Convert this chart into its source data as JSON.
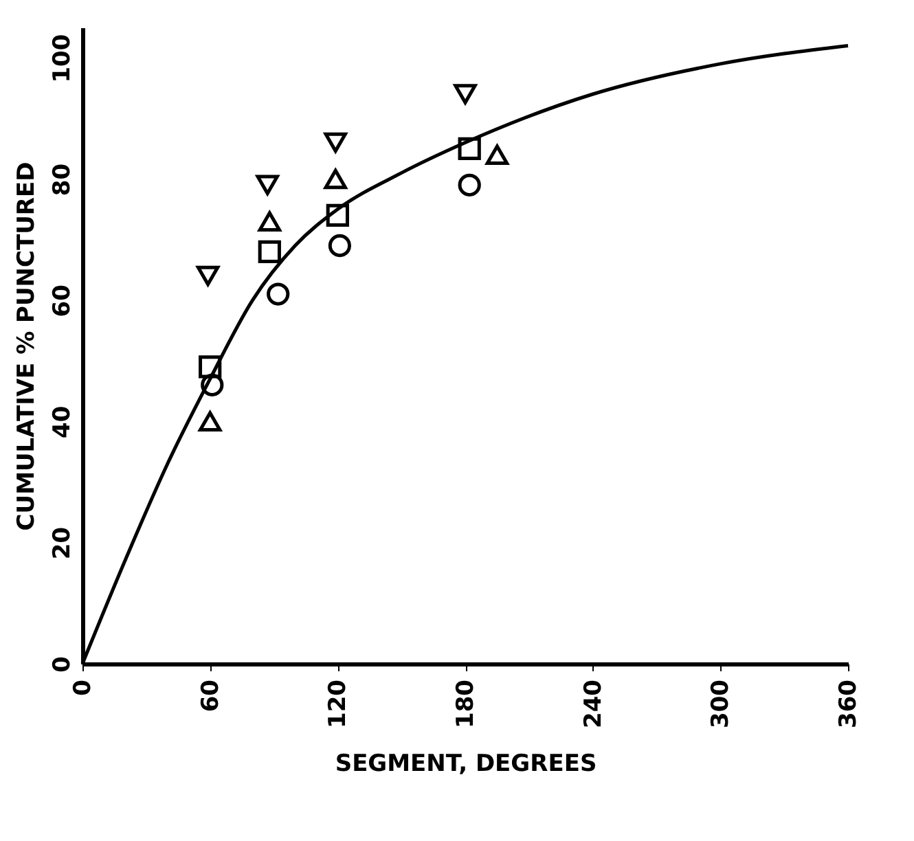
{
  "chart_data": {
    "type": "scatter",
    "xlabel": "SEGMENT, DEGREES",
    "ylabel": "CUMULATIVE  %  PUNCTURED",
    "xlim": [
      0,
      360
    ],
    "ylim": [
      0,
      105
    ],
    "xticks": [
      0,
      60,
      120,
      180,
      240,
      300,
      360
    ],
    "yticks": [
      0,
      20,
      40,
      60,
      80,
      100
    ],
    "grid": false,
    "series": [
      {
        "type": "line",
        "marker": "none",
        "line_style": "solid",
        "color": "#000000",
        "x": [
          0,
          20,
          40,
          60,
          80,
          100,
          120,
          150,
          180,
          240,
          300,
          360
        ],
        "values": [
          0,
          17,
          33,
          47,
          60,
          69,
          75,
          81,
          86,
          94,
          99,
          102
        ]
      },
      {
        "marker": "square",
        "color": "#000000",
        "x": [
          60,
          88,
          120,
          182
        ],
        "values": [
          49,
          68,
          74,
          85
        ]
      },
      {
        "marker": "circle",
        "color": "#000000",
        "x": [
          61,
          92,
          121,
          182
        ],
        "values": [
          46,
          61,
          69,
          79
        ]
      },
      {
        "marker": "triangle",
        "color": "#000000",
        "x": [
          60,
          88,
          119,
          195
        ],
        "values": [
          40,
          73,
          80,
          84
        ]
      },
      {
        "marker": "triangle-down",
        "color": "#000000",
        "x": [
          59,
          87,
          119,
          180
        ],
        "values": [
          64,
          79,
          86,
          94
        ]
      }
    ]
  }
}
